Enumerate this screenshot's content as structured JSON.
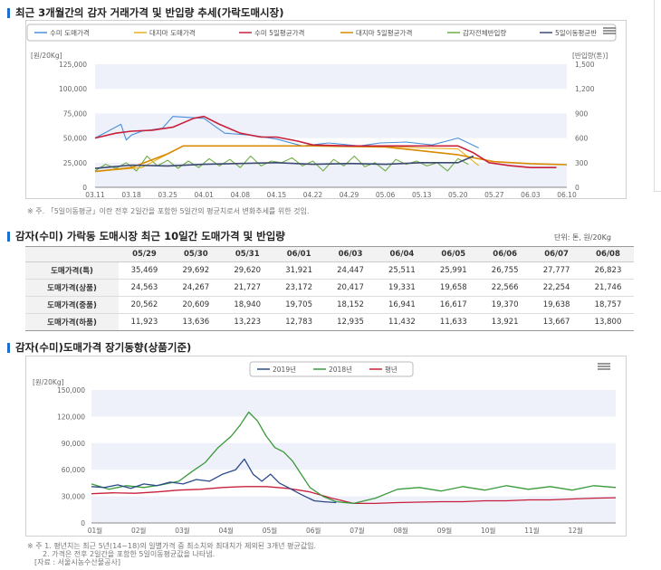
{
  "section1": {
    "title": "최근 3개월간의 감자 거래가격 및 반입량 추세(가락도매시장)",
    "note": "※ 주. 「5일이동평균」이란 전후 2일간을 포함한 5일간의 평균치로서 변화추세를 위한 것임."
  },
  "section2": {
    "title": "감자(수미) 가락동 도매시장 최근 10일간 도매가격 및 반입량",
    "unit": "단위: 톤, 원/20Kg"
  },
  "section3": {
    "title": "감자(수미)도매가격 장기동향(상품기준)",
    "note1": "※ 주 1. 평년치는 최근 5년(14~18)의 일별가격 중 최소치와 최대치가 제외된 3개년 평균값임.",
    "note2": "2. 가격은 전후 2일간을 포함한 5일이동평균값을 나타냄.",
    "note3": "[자료 : 서울시농수산물공사]"
  },
  "colors": {
    "sumi": "#4a90d9",
    "daeji": "#e8b020",
    "sumi_ma": "#c8203a",
    "daeji_ma": "#d98a00",
    "volume": "#70ad47",
    "volume_ma": "#3c4a70",
    "y2019": "#2b4a8a",
    "y2018": "#3a9a3a",
    "avg": "#c8203a",
    "band": "#eef0fa"
  },
  "chart_data": [
    {
      "type": "line",
      "title": "최근 3개월간의 감자 거래가격 및 반입량 추세(가락도매시장)",
      "legend": [
        "수미 도매가격",
        "대지마 도매가격",
        "수미 5일평균가격",
        "대지마 5일평균가격",
        "감자전체반입량",
        "5일이동평균반"
      ],
      "legend_position": "top",
      "ylabel": "[원/20Kg]",
      "ylabel_right": "[반입량(톤)]",
      "ylim": [
        0,
        125000
      ],
      "ylim_right": [
        0,
        1500
      ],
      "yticks": [
        "0",
        "25,000",
        "50,000",
        "75,000",
        "100,000",
        "125,000"
      ],
      "yticks_right": [
        "0",
        "300",
        "600",
        "900",
        "1,200",
        "1,500"
      ],
      "xticks": [
        "03.11",
        "03.18",
        "03.25",
        "04.01",
        "04.08",
        "04.15",
        "04.22",
        "04.29",
        "05.06",
        "05.13",
        "05.20",
        "05.27",
        "06.03",
        "06.10"
      ],
      "x_start": "03.11",
      "x_end": "06.10",
      "grid": "horizontal bands",
      "series": [
        {
          "name": "수미 도매가격",
          "axis": "left",
          "x": [
            "03.11",
            "03.16",
            "03.17",
            "03.18",
            "03.20",
            "03.24",
            "03.26",
            "04.01",
            "04.05",
            "04.10",
            "04.15",
            "04.20",
            "04.25",
            "05.01",
            "05.05",
            "05.10",
            "05.15",
            "05.20",
            "05.24"
          ],
          "values": [
            50000,
            64000,
            48000,
            53000,
            57000,
            60000,
            72000,
            70000,
            55000,
            53000,
            49000,
            42000,
            45000,
            42000,
            45000,
            46000,
            43000,
            50000,
            40000
          ]
        },
        {
          "name": "대지마 도매가격",
          "axis": "left",
          "x": [
            "03.11",
            "03.20",
            "03.28",
            "04.10",
            "04.25",
            "05.05",
            "05.13",
            "05.20",
            "05.24"
          ],
          "values": [
            16000,
            20000,
            42000,
            42000,
            42000,
            42000,
            40000,
            39000,
            22000
          ]
        },
        {
          "name": "수미 5일평균가격",
          "axis": "left",
          "x": [
            "03.11",
            "03.15",
            "03.18",
            "03.22",
            "03.26",
            "03.30",
            "04.01",
            "04.04",
            "04.08",
            "04.12",
            "04.15",
            "04.19",
            "04.22",
            "04.29",
            "05.06",
            "05.13",
            "05.20",
            "05.23",
            "05.26",
            "05.30",
            "06.03",
            "06.08"
          ],
          "values": [
            50000,
            55000,
            57000,
            58000,
            61000,
            70000,
            72000,
            64000,
            55000,
            51000,
            51000,
            47000,
            43000,
            42000,
            42000,
            42000,
            42000,
            35000,
            25000,
            22000,
            20000,
            20000
          ]
        },
        {
          "name": "대지마 5일평균가격",
          "axis": "left",
          "x": [
            "03.11",
            "03.18",
            "03.25",
            "03.28",
            "04.08",
            "04.22",
            "05.06",
            "05.13",
            "05.20",
            "05.27",
            "06.03",
            "06.10"
          ],
          "values": [
            16000,
            20000,
            34000,
            42000,
            42000,
            42000,
            41000,
            37000,
            33000,
            26000,
            24000,
            23000
          ]
        },
        {
          "name": "감자전체반입량",
          "axis": "right",
          "x": [
            "03.11",
            "03.13",
            "03.15",
            "03.17",
            "03.19",
            "03.21",
            "03.23",
            "03.25",
            "03.27",
            "03.29",
            "03.31",
            "04.02",
            "04.04",
            "04.06",
            "04.08",
            "04.10",
            "04.12",
            "04.14",
            "04.16",
            "04.18",
            "04.20",
            "04.22",
            "04.24",
            "04.26",
            "04.28",
            "04.30",
            "05.02",
            "05.04",
            "05.06",
            "05.08",
            "05.10",
            "05.12",
            "05.14",
            "05.16",
            "05.18",
            "05.20",
            "05.22"
          ],
          "values": [
            200,
            280,
            230,
            300,
            200,
            380,
            260,
            330,
            230,
            320,
            240,
            350,
            260,
            340,
            240,
            380,
            260,
            320,
            300,
            360,
            260,
            320,
            200,
            340,
            260,
            380,
            250,
            300,
            200,
            340,
            280,
            320,
            260,
            300,
            200,
            350,
            280
          ]
        },
        {
          "name": "5일이동평균반",
          "axis": "right",
          "x": [
            "03.11",
            "03.18",
            "03.25",
            "04.01",
            "04.08",
            "04.15",
            "04.22",
            "04.29",
            "05.06",
            "05.13",
            "05.20",
            "05.23"
          ],
          "values": [
            230,
            270,
            260,
            280,
            290,
            300,
            280,
            290,
            280,
            300,
            300,
            380
          ]
        }
      ]
    },
    {
      "type": "table",
      "title": "감자(수미) 가락동 도매시장 최근 10일간 도매가격 및 반입량",
      "unit": "단위: 톤, 원/20Kg",
      "columns": [
        "05/29",
        "05/30",
        "05/31",
        "06/01",
        "06/03",
        "06/04",
        "06/05",
        "06/06",
        "06/07",
        "06/08"
      ],
      "rows": [
        {
          "label": "도매가격(특)",
          "values": [
            "35,469",
            "29,692",
            "29,620",
            "31,921",
            "24,447",
            "25,511",
            "25,991",
            "26,755",
            "27,777",
            "26,823"
          ]
        },
        {
          "label": "도매가격(상품)",
          "values": [
            "24,563",
            "24,267",
            "21,727",
            "23,172",
            "20,417",
            "19,331",
            "19,658",
            "22,566",
            "22,254",
            "21,746"
          ]
        },
        {
          "label": "도매가격(중품)",
          "values": [
            "20,562",
            "20,609",
            "18,940",
            "19,705",
            "18,152",
            "16,941",
            "16,617",
            "19,370",
            "19,638",
            "18,757"
          ]
        },
        {
          "label": "도매가격(하품)",
          "values": [
            "11,923",
            "13,636",
            "13,223",
            "12,783",
            "12,935",
            "11,432",
            "11,633",
            "13,921",
            "13,667",
            "13,800"
          ]
        }
      ]
    },
    {
      "type": "line",
      "title": "감자(수미)도매가격 장기동향(상품기준)",
      "legend": [
        "2019년",
        "2018년",
        "평년"
      ],
      "legend_position": "top",
      "ylabel": "[원/20Kg]",
      "ylim": [
        0,
        150000
      ],
      "yticks": [
        "0",
        "30,000",
        "60,000",
        "90,000",
        "120,000",
        "150,000"
      ],
      "xticks": [
        "01월",
        "02월",
        "03월",
        "04월",
        "05월",
        "06월",
        "07월",
        "08월",
        "09월",
        "10월",
        "11월",
        "12월"
      ],
      "grid": "horizontal bands",
      "series": [
        {
          "name": "2019년",
          "x": [
            0,
            0.3,
            0.6,
            0.9,
            1.2,
            1.5,
            1.8,
            2.1,
            2.4,
            2.7,
            3.0,
            3.3,
            3.5,
            3.7,
            3.9,
            4.1,
            4.3,
            4.5,
            4.8,
            5.1,
            5.3,
            5.6
          ],
          "values": [
            41000,
            40000,
            43000,
            39000,
            44000,
            42000,
            46000,
            44000,
            49000,
            47000,
            55000,
            60000,
            72000,
            55000,
            47000,
            55000,
            45000,
            40000,
            32000,
            25000,
            24000,
            23000
          ]
        },
        {
          "name": "2018년",
          "x": [
            0,
            0.4,
            0.8,
            1.2,
            1.6,
            2.0,
            2.3,
            2.6,
            2.9,
            3.2,
            3.4,
            3.6,
            3.8,
            4.0,
            4.2,
            4.4,
            4.6,
            4.8,
            5.0,
            5.3,
            5.6,
            6.0,
            6.5,
            7.0,
            7.5,
            8.0,
            8.5,
            9.0,
            9.5,
            10.0,
            10.5,
            11.0,
            11.5,
            12.0
          ],
          "values": [
            44000,
            38000,
            42000,
            40000,
            43000,
            47000,
            58000,
            68000,
            85000,
            98000,
            110000,
            125000,
            115000,
            98000,
            85000,
            80000,
            70000,
            55000,
            40000,
            30000,
            24000,
            22000,
            28000,
            38000,
            40000,
            36000,
            41000,
            37000,
            42000,
            38000,
            41000,
            37000,
            42000,
            40000
          ]
        },
        {
          "name": "평년",
          "x": [
            0,
            0.5,
            1.0,
            1.5,
            2.0,
            2.5,
            3.0,
            3.5,
            4.0,
            4.5,
            5.0,
            5.5,
            6.0,
            6.5,
            7.0,
            7.5,
            8.0,
            8.5,
            9.0,
            9.5,
            10.0,
            10.5,
            11.0,
            11.5,
            12.0
          ],
          "values": [
            33000,
            34000,
            33500,
            35000,
            37000,
            38000,
            40000,
            41000,
            41000,
            39000,
            35000,
            28000,
            22000,
            22000,
            23000,
            23500,
            24000,
            24000,
            25000,
            25000,
            26000,
            26000,
            27000,
            28000,
            28500
          ]
        }
      ]
    }
  ]
}
